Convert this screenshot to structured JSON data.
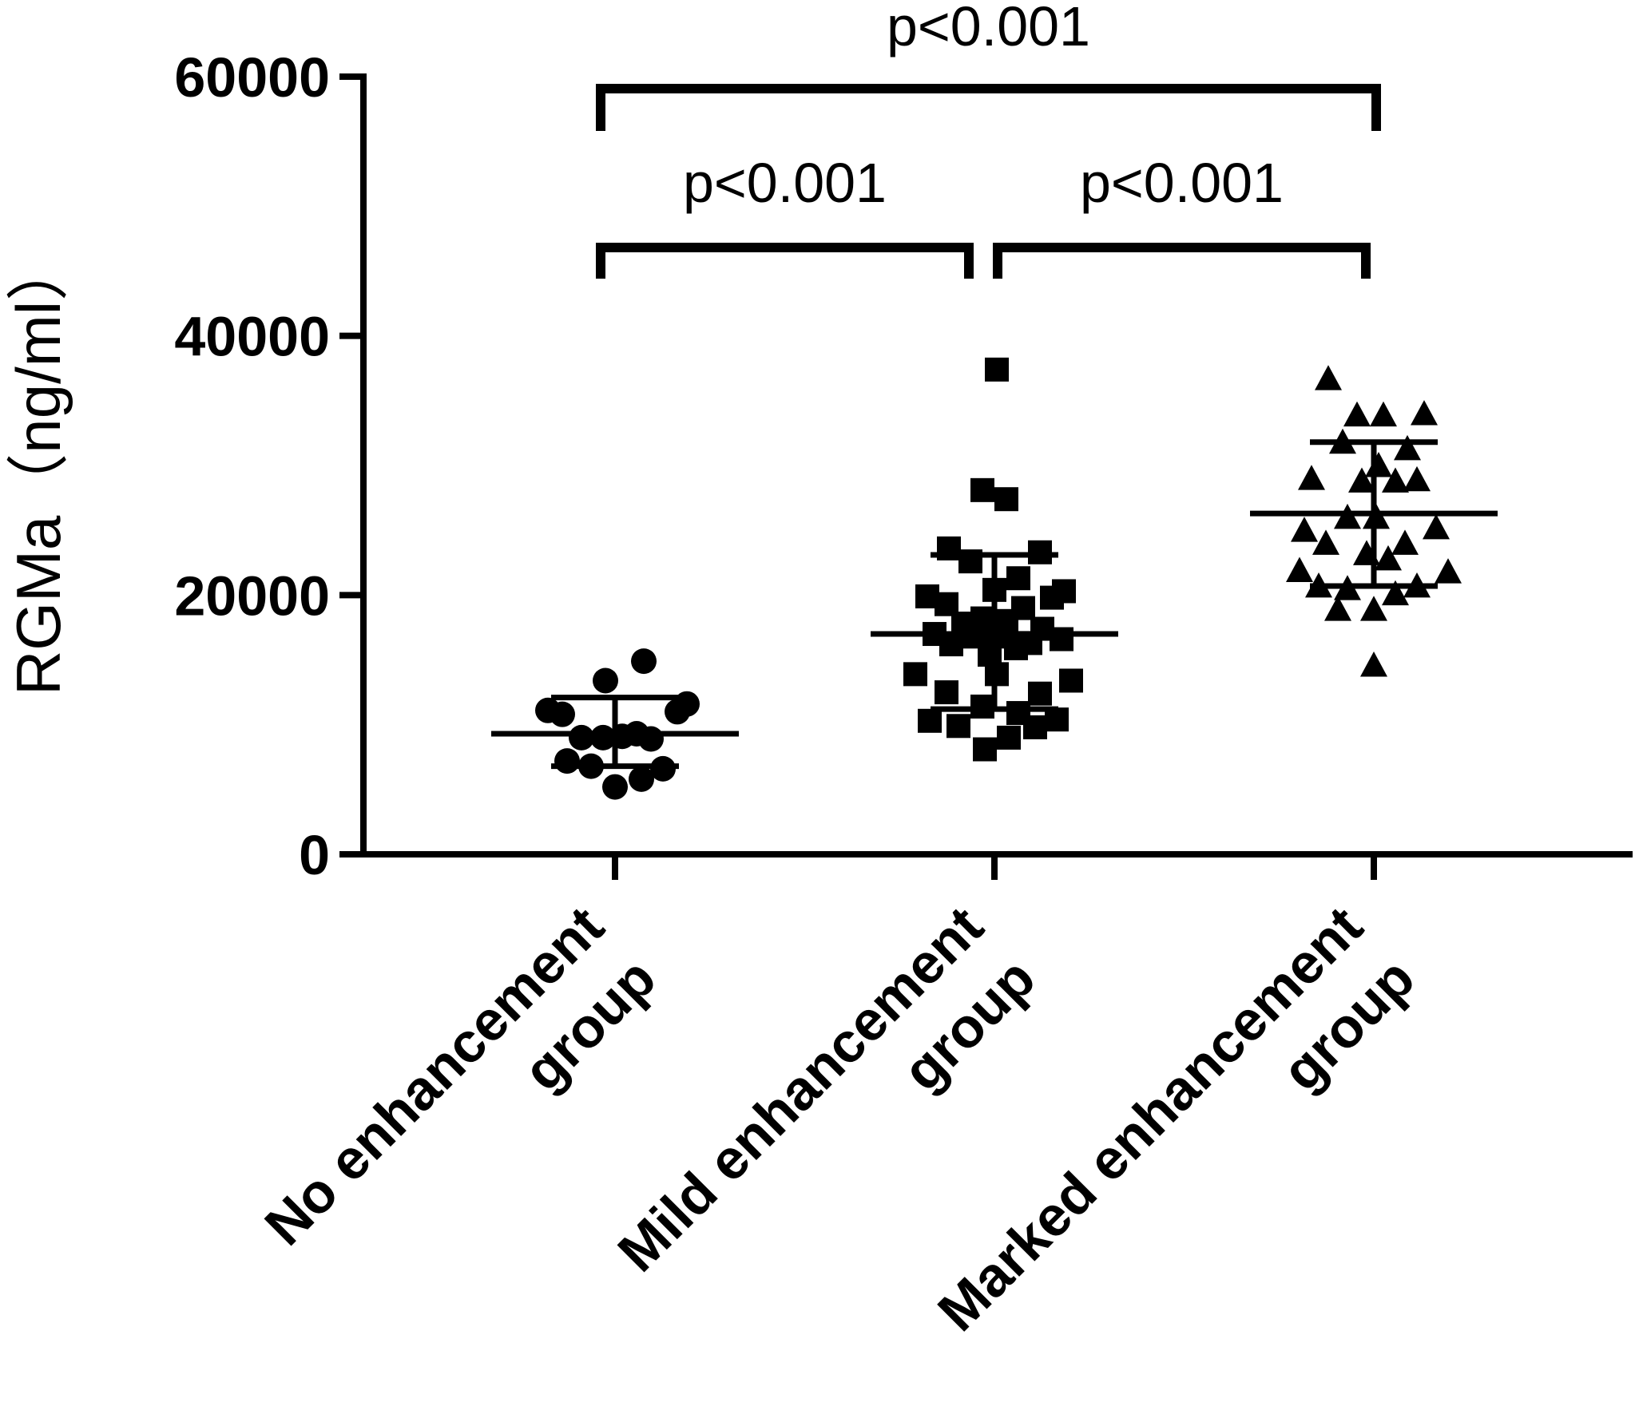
{
  "chart_data": {
    "type": "scatter",
    "ylabel": "RGMa（ng/ml）",
    "xlabel": "",
    "ylim": [
      0,
      60000
    ],
    "yticks": [
      0,
      20000,
      40000,
      60000
    ],
    "ytick_labels": [
      "0",
      "20000",
      "40000",
      "60000"
    ],
    "categories": [
      [
        "No enhancement",
        "group"
      ],
      [
        "Mild enhancement",
        "group"
      ],
      [
        "Marked enhancement",
        "group"
      ]
    ],
    "groups": [
      {
        "marker": "circle",
        "mean": 9300,
        "sd_low": 6800,
        "sd_high": 12100,
        "points": [
          {
            "o": -0.28,
            "y": 11100
          },
          {
            "o": -0.22,
            "y": 10800
          },
          {
            "o": -0.2,
            "y": 7200
          },
          {
            "o": -0.14,
            "y": 9000
          },
          {
            "o": -0.1,
            "y": 6800
          },
          {
            "o": -0.05,
            "y": 9000
          },
          {
            "o": -0.04,
            "y": 13400
          },
          {
            "o": 0.0,
            "y": 5200
          },
          {
            "o": 0.03,
            "y": 9100
          },
          {
            "o": 0.09,
            "y": 9300
          },
          {
            "o": 0.11,
            "y": 5800
          },
          {
            "o": 0.12,
            "y": 14900
          },
          {
            "o": 0.15,
            "y": 8900
          },
          {
            "o": 0.2,
            "y": 6600
          },
          {
            "o": 0.26,
            "y": 11000
          },
          {
            "o": 0.3,
            "y": 11600
          }
        ]
      },
      {
        "marker": "square",
        "mean": 17000,
        "sd_low": 11200,
        "sd_high": 23100,
        "points": [
          {
            "o": -0.33,
            "y": 13900
          },
          {
            "o": -0.28,
            "y": 19900
          },
          {
            "o": -0.27,
            "y": 10300
          },
          {
            "o": -0.25,
            "y": 17000
          },
          {
            "o": -0.2,
            "y": 19300
          },
          {
            "o": -0.2,
            "y": 12500
          },
          {
            "o": -0.19,
            "y": 23600
          },
          {
            "o": -0.18,
            "y": 16200
          },
          {
            "o": -0.15,
            "y": 9900
          },
          {
            "o": -0.13,
            "y": 17800
          },
          {
            "o": -0.1,
            "y": 22600
          },
          {
            "o": -0.08,
            "y": 16800
          },
          {
            "o": -0.05,
            "y": 28100
          },
          {
            "o": -0.05,
            "y": 18200
          },
          {
            "o": -0.04,
            "y": 8100
          },
          {
            "o": -0.05,
            "y": 11400
          },
          {
            "o": -0.02,
            "y": 15400
          },
          {
            "o": 0.0,
            "y": 20400
          },
          {
            "o": 0.01,
            "y": 37400
          },
          {
            "o": 0.01,
            "y": 13900
          },
          {
            "o": 0.02,
            "y": 16800
          },
          {
            "o": 0.05,
            "y": 18000
          },
          {
            "o": 0.05,
            "y": 27400
          },
          {
            "o": 0.06,
            "y": 9000
          },
          {
            "o": 0.09,
            "y": 15900
          },
          {
            "o": 0.1,
            "y": 21300
          },
          {
            "o": 0.1,
            "y": 10900
          },
          {
            "o": 0.12,
            "y": 19000
          },
          {
            "o": 0.15,
            "y": 16300
          },
          {
            "o": 0.17,
            "y": 9800
          },
          {
            "o": 0.19,
            "y": 23300
          },
          {
            "o": 0.19,
            "y": 12400
          },
          {
            "o": 0.2,
            "y": 17400
          },
          {
            "o": 0.24,
            "y": 19800
          },
          {
            "o": 0.26,
            "y": 10400
          },
          {
            "o": 0.28,
            "y": 16600
          },
          {
            "o": 0.29,
            "y": 20300
          },
          {
            "o": 0.32,
            "y": 13400
          }
        ]
      },
      {
        "marker": "triangle",
        "mean": 26300,
        "sd_low": 20700,
        "sd_high": 31800,
        "points": [
          {
            "o": -0.31,
            "y": 21900
          },
          {
            "o": -0.29,
            "y": 25000
          },
          {
            "o": -0.26,
            "y": 29000
          },
          {
            "o": -0.23,
            "y": 20700
          },
          {
            "o": -0.2,
            "y": 24000
          },
          {
            "o": -0.19,
            "y": 36700
          },
          {
            "o": -0.15,
            "y": 18900
          },
          {
            "o": -0.13,
            "y": 31800
          },
          {
            "o": -0.11,
            "y": 26000
          },
          {
            "o": -0.11,
            "y": 20500
          },
          {
            "o": -0.07,
            "y": 33900
          },
          {
            "o": -0.05,
            "y": 28800
          },
          {
            "o": -0.03,
            "y": 23200
          },
          {
            "o": 0.0,
            "y": 14600
          },
          {
            "o": 0.0,
            "y": 18900
          },
          {
            "o": 0.01,
            "y": 26000
          },
          {
            "o": 0.02,
            "y": 30000
          },
          {
            "o": 0.04,
            "y": 33900
          },
          {
            "o": 0.06,
            "y": 22800
          },
          {
            "o": 0.09,
            "y": 28800
          },
          {
            "o": 0.09,
            "y": 20100
          },
          {
            "o": 0.13,
            "y": 24000
          },
          {
            "o": 0.14,
            "y": 31300
          },
          {
            "o": 0.18,
            "y": 28900
          },
          {
            "o": 0.18,
            "y": 20700
          },
          {
            "o": 0.21,
            "y": 34000
          },
          {
            "o": 0.26,
            "y": 25200
          },
          {
            "o": 0.31,
            "y": 21800
          }
        ]
      }
    ],
    "comparisons": [
      {
        "from": 0,
        "to": 2,
        "label": "p<0.001"
      },
      {
        "from": 0,
        "to": 1,
        "label": "p<0.001"
      },
      {
        "from": 1,
        "to": 2,
        "label": "p<0.001"
      }
    ]
  }
}
